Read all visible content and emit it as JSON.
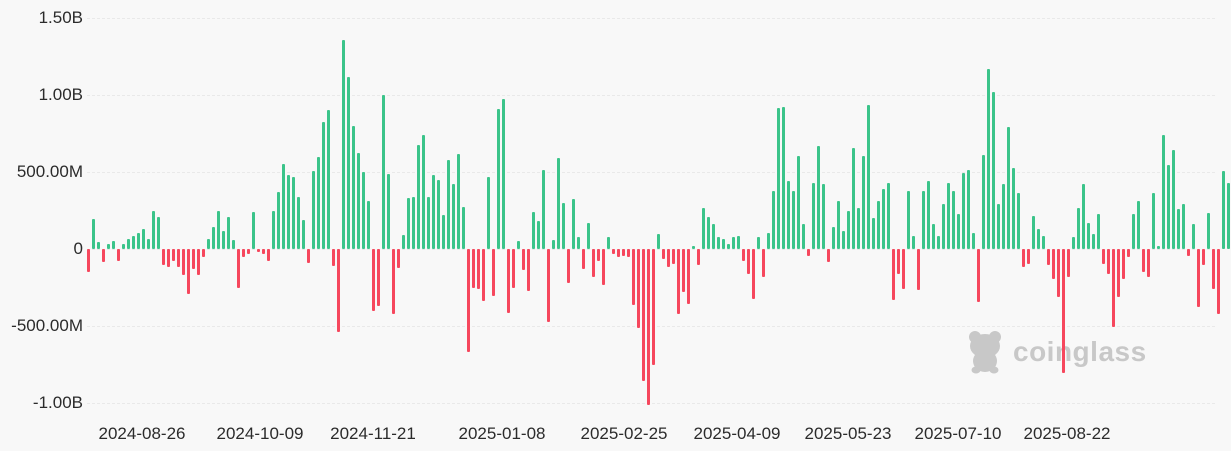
{
  "watermark": {
    "brand": "coinglass",
    "icon": "coinglass-bear-icon"
  },
  "colors": {
    "positive_bar": "#3bc48a",
    "negative_bar": "#f6475d",
    "background": "#f8f8f8",
    "gridline": "#e9e9e9",
    "axis_text": "#2b2b2b",
    "watermark": "#c8c8c8"
  },
  "chart_data": {
    "type": "bar",
    "title": "",
    "xlabel": "",
    "ylabel": "",
    "legend": false,
    "grid": true,
    "values_unit": "USD, millions",
    "series_semantics": "daily net flow bars; positive = green inflow, negative = red outflow",
    "x_tick_labels": [
      "2024-08-26",
      "2024-10-09",
      "2024-11-21",
      "2025-01-08",
      "2025-02-25",
      "2025-04-09",
      "2025-05-23",
      "2025-07-10",
      "2025-08-22"
    ],
    "y_tick_labels": [
      "1.50B",
      "1.00B",
      "500.00M",
      "0",
      "-500.00M",
      "-1.00B"
    ],
    "y_tick_values_millions": [
      1500,
      1000,
      500,
      0,
      -500,
      -1000
    ],
    "ylim_millions": [
      -1300,
      1600
    ],
    "values_millions": [
      -150,
      195,
      45,
      -85,
      30,
      55,
      -75,
      30,
      65,
      85,
      105,
      130,
      65,
      245,
      205,
      -105,
      -120,
      -75,
      -120,
      -170,
      -290,
      -130,
      -170,
      -55,
      65,
      140,
      245,
      115,
      205,
      60,
      -250,
      -50,
      -30,
      240,
      -20,
      -30,
      -80,
      250,
      370,
      550,
      480,
      465,
      340,
      190,
      -90,
      505,
      600,
      825,
      900,
      -110,
      -540,
      1360,
      1120,
      800,
      625,
      500,
      310,
      -400,
      -370,
      1000,
      490,
      -425,
      -125,
      90,
      330,
      340,
      675,
      740,
      340,
      480,
      450,
      220,
      580,
      425,
      620,
      275,
      -670,
      -250,
      -260,
      -340,
      470,
      -305,
      910,
      975,
      -415,
      -250,
      50,
      -135,
      -270,
      243,
      183,
      516,
      -473,
      60,
      590,
      300,
      -220,
      322,
      75,
      -130,
      172,
      -183,
      -75,
      -236,
      75,
      -32,
      -54,
      -43,
      -54,
      -365,
      -516,
      -860,
      -1010,
      -752,
      97,
      -64,
      -118,
      -97,
      -419,
      -280,
      -355,
      21,
      -107,
      269,
      205,
      161,
      75,
      64,
      32,
      75,
      86,
      -75,
      -161,
      -322,
      75,
      -183,
      107,
      376,
      913,
      924,
      440,
      376,
      601,
      161,
      -43,
      430,
      666,
      419,
      -86,
      140,
      311,
      118,
      247,
      655,
      269,
      601,
      934,
      204,
      311,
      387,
      430,
      -333,
      -161,
      -258,
      376,
      86,
      -269,
      376,
      440,
      161,
      86,
      290,
      430,
      376,
      226,
      494,
      516,
      107,
      -344,
      612,
      1170,
      1020,
      290,
      419,
      795,
      527,
      365,
      -118,
      -97,
      215,
      129,
      86,
      -107,
      -193,
      -311,
      -806,
      -183,
      75,
      269,
      419,
      172,
      97,
      226,
      -97,
      -161,
      -505,
      -311,
      -193,
      -54,
      226,
      311,
      -150,
      -183,
      365,
      21,
      740,
      548,
      645,
      258,
      290,
      -43,
      161,
      -376,
      -107,
      236,
      -258,
      -419,
      505,
      430
    ]
  }
}
